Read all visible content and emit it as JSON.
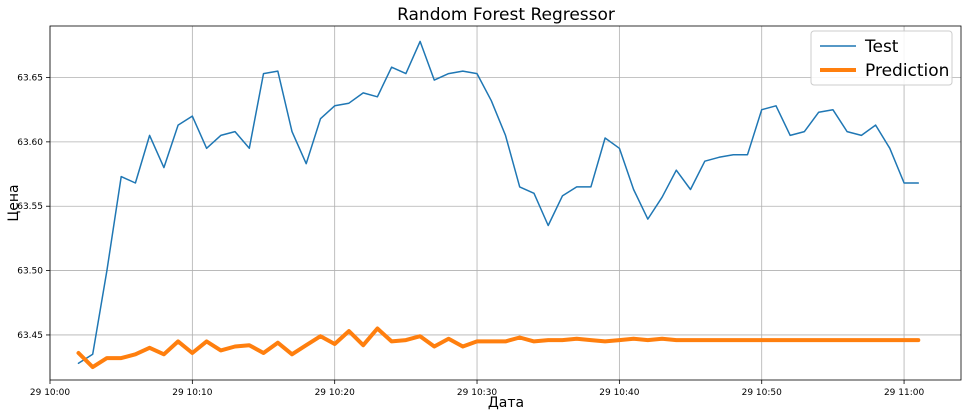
{
  "chart_data": {
    "type": "line",
    "title": "Random Forest Regressor",
    "xlabel": "Дата",
    "ylabel": "Цена",
    "grid": true,
    "legend_position": "top-right",
    "x_unit": "time",
    "xlim": [
      "10:00",
      "11:04"
    ],
    "ylim": [
      63.415,
      63.69
    ],
    "x_ticks": [
      "29 10:00",
      "29 10:10",
      "29 10:20",
      "29 10:30",
      "29 10:40",
      "29 10:50",
      "29 11:00"
    ],
    "y_ticks": [
      "63.45",
      "63.50",
      "63.55",
      "63.60",
      "63.65"
    ],
    "x": [
      "10:02",
      "10:03",
      "10:04",
      "10:05",
      "10:06",
      "10:07",
      "10:08",
      "10:09",
      "10:10",
      "10:11",
      "10:12",
      "10:13",
      "10:14",
      "10:15",
      "10:16",
      "10:17",
      "10:18",
      "10:19",
      "10:20",
      "10:21",
      "10:22",
      "10:23",
      "10:24",
      "10:25",
      "10:26",
      "10:27",
      "10:28",
      "10:29",
      "10:30",
      "10:31",
      "10:32",
      "10:33",
      "10:34",
      "10:35",
      "10:36",
      "10:37",
      "10:38",
      "10:39",
      "10:40",
      "10:41",
      "10:42",
      "10:43",
      "10:44",
      "10:45",
      "10:46",
      "10:47",
      "10:48",
      "10:49",
      "10:50",
      "10:51",
      "10:52",
      "10:53",
      "10:54",
      "10:55",
      "10:56",
      "10:57",
      "10:58",
      "10:59",
      "11:00",
      "11:01"
    ],
    "series": [
      {
        "name": "Test",
        "color": "#1f77b4",
        "values": [
          63.428,
          63.435,
          63.5,
          63.573,
          63.568,
          63.605,
          63.58,
          63.613,
          63.62,
          63.595,
          63.605,
          63.608,
          63.595,
          63.653,
          63.655,
          63.608,
          63.583,
          63.618,
          63.628,
          63.63,
          63.638,
          63.635,
          63.658,
          63.653,
          63.678,
          63.648,
          63.653,
          63.655,
          63.653,
          63.632,
          63.605,
          63.565,
          63.56,
          63.535,
          63.558,
          63.565,
          63.565,
          63.603,
          63.595,
          63.563,
          63.54,
          63.557,
          63.578,
          63.563,
          63.585,
          63.588,
          63.59,
          63.59,
          63.625,
          63.628,
          63.605,
          63.608,
          63.623,
          63.625,
          63.608,
          63.605,
          63.613,
          63.595,
          63.568,
          63.568
        ]
      },
      {
        "name": "Prediction",
        "color": "#ff7f0e",
        "values": [
          63.436,
          63.425,
          63.432,
          63.432,
          63.435,
          63.44,
          63.435,
          63.445,
          63.436,
          63.445,
          63.438,
          63.441,
          63.442,
          63.436,
          63.444,
          63.435,
          63.442,
          63.449,
          63.443,
          63.453,
          63.442,
          63.455,
          63.445,
          63.446,
          63.449,
          63.441,
          63.447,
          63.441,
          63.445,
          63.445,
          63.445,
          63.448,
          63.445,
          63.446,
          63.446,
          63.447,
          63.446,
          63.445,
          63.446,
          63.447,
          63.446,
          63.447,
          63.446,
          63.446,
          63.446,
          63.446,
          63.446,
          63.446,
          63.446,
          63.446,
          63.446,
          63.446,
          63.446,
          63.446,
          63.446,
          63.446,
          63.446,
          63.446,
          63.446,
          63.446
        ]
      }
    ]
  }
}
